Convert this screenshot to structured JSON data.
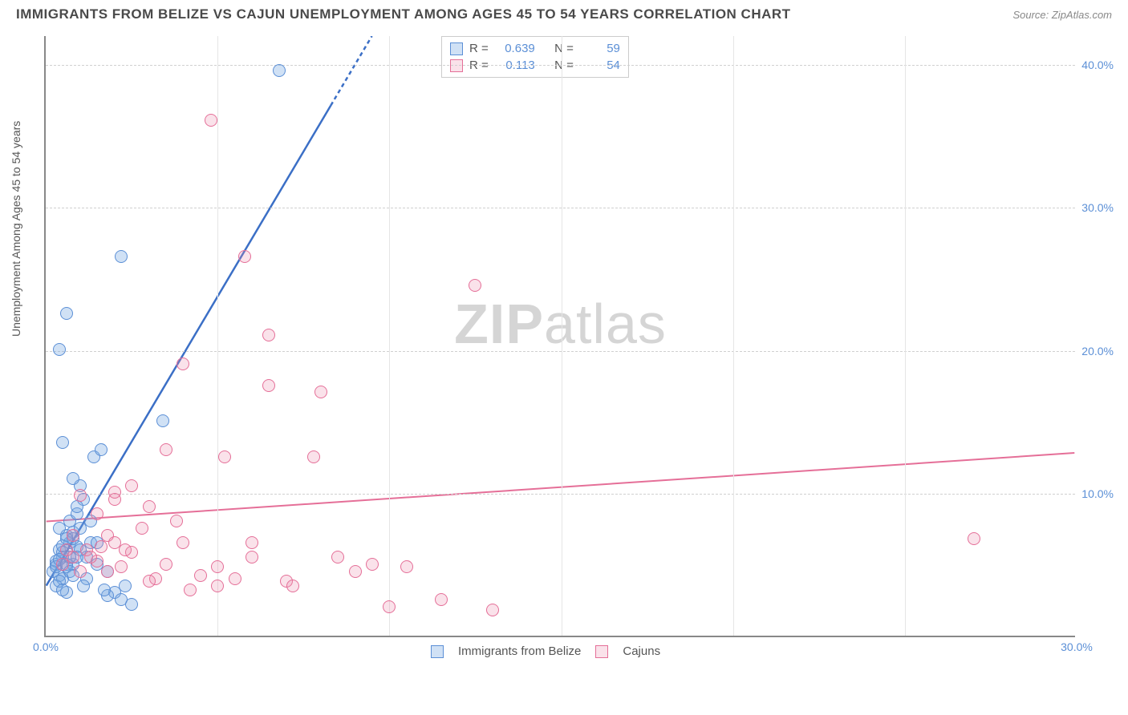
{
  "title": "IMMIGRANTS FROM BELIZE VS CAJUN UNEMPLOYMENT AMONG AGES 45 TO 54 YEARS CORRELATION CHART",
  "source": "Source: ZipAtlas.com",
  "ylabel": "Unemployment Among Ages 45 to 54 years",
  "watermark_bold": "ZIP",
  "watermark_rest": "atlas",
  "chart": {
    "type": "scatter",
    "xlim": [
      0,
      30
    ],
    "ylim": [
      0,
      42
    ],
    "xticks": [
      {
        "v": 0,
        "l": "0.0%"
      },
      {
        "v": 30,
        "l": "30.0%"
      }
    ],
    "yticks": [
      {
        "v": 10,
        "l": "10.0%"
      },
      {
        "v": 20,
        "l": "20.0%"
      },
      {
        "v": 30,
        "l": "30.0%"
      },
      {
        "v": 40,
        "l": "40.0%"
      }
    ],
    "grid_h": [
      10,
      20,
      30,
      40
    ],
    "grid_v": [
      5,
      10,
      15,
      20,
      25
    ],
    "background_color": "#ffffff",
    "grid_color": "#d0d0d0",
    "marker_size": 16,
    "series": [
      {
        "name": "Immigrants from Belize",
        "color_fill": "rgba(120,170,225,0.35)",
        "color_stroke": "#5b8fd6",
        "r_label": "R =",
        "r_value": "0.639",
        "n_label": "N =",
        "n_value": "59",
        "trend": {
          "x1": 0,
          "y1": 3.5,
          "x2": 9.5,
          "y2": 42,
          "color": "#3b6fc6",
          "width": 2.5,
          "dash_after_x": 8.3
        },
        "points": [
          [
            0.2,
            4.5
          ],
          [
            0.3,
            5.0
          ],
          [
            0.4,
            4.2
          ],
          [
            0.5,
            5.5
          ],
          [
            0.4,
            6.0
          ],
          [
            0.3,
            5.2
          ],
          [
            0.6,
            4.8
          ],
          [
            0.5,
            5.8
          ],
          [
            0.7,
            6.5
          ],
          [
            0.8,
            5.0
          ],
          [
            0.6,
            7.0
          ],
          [
            0.9,
            6.2
          ],
          [
            0.4,
            7.5
          ],
          [
            0.5,
            4.0
          ],
          [
            0.7,
            8.0
          ],
          [
            0.8,
            7.2
          ],
          [
            1.0,
            6.0
          ],
          [
            0.3,
            3.5
          ],
          [
            0.6,
            3.0
          ],
          [
            1.2,
            5.5
          ],
          [
            0.9,
            8.5
          ],
          [
            1.1,
            9.5
          ],
          [
            1.0,
            10.5
          ],
          [
            0.8,
            11.0
          ],
          [
            1.5,
            5.0
          ],
          [
            1.3,
            6.5
          ],
          [
            1.8,
            4.5
          ],
          [
            2.0,
            3.0
          ],
          [
            2.2,
            2.5
          ],
          [
            1.8,
            2.8
          ],
          [
            2.5,
            2.2
          ],
          [
            1.4,
            12.5
          ],
          [
            1.6,
            13.0
          ],
          [
            0.5,
            13.5
          ],
          [
            0.4,
            20.0
          ],
          [
            0.6,
            22.5
          ],
          [
            2.2,
            26.5
          ],
          [
            3.4,
            15.0
          ],
          [
            6.8,
            39.5
          ],
          [
            0.3,
            4.8
          ],
          [
            0.4,
            5.3
          ],
          [
            0.5,
            6.3
          ],
          [
            0.6,
            5.0
          ],
          [
            0.7,
            4.5
          ],
          [
            0.8,
            6.8
          ],
          [
            0.9,
            5.5
          ],
          [
            1.0,
            7.5
          ],
          [
            0.4,
            3.8
          ],
          [
            0.5,
            3.2
          ],
          [
            1.2,
            4.0
          ],
          [
            1.5,
            6.5
          ],
          [
            0.8,
            4.2
          ],
          [
            0.6,
            6.8
          ],
          [
            0.9,
            9.0
          ],
          [
            1.3,
            8.0
          ],
          [
            1.1,
            3.5
          ],
          [
            1.7,
            3.2
          ],
          [
            2.3,
            3.5
          ],
          [
            0.7,
            5.5
          ]
        ]
      },
      {
        "name": "Cajuns",
        "color_fill": "rgba(235,140,170,0.25)",
        "color_stroke": "#e56f98",
        "r_label": "R =",
        "r_value": "0.113",
        "n_label": "N =",
        "n_value": "54",
        "trend": {
          "x1": 0,
          "y1": 8.0,
          "x2": 30,
          "y2": 12.8,
          "color": "#e56f98",
          "width": 2
        },
        "points": [
          [
            0.5,
            5.0
          ],
          [
            0.8,
            5.5
          ],
          [
            1.0,
            4.5
          ],
          [
            1.2,
            6.0
          ],
          [
            1.5,
            5.2
          ],
          [
            1.8,
            7.0
          ],
          [
            2.0,
            6.5
          ],
          [
            2.2,
            4.8
          ],
          [
            2.5,
            5.8
          ],
          [
            2.8,
            7.5
          ],
          [
            3.0,
            9.0
          ],
          [
            3.2,
            4.0
          ],
          [
            3.5,
            5.0
          ],
          [
            4.0,
            6.5
          ],
          [
            4.5,
            4.2
          ],
          [
            5.0,
            3.5
          ],
          [
            5.2,
            12.5
          ],
          [
            5.5,
            4.0
          ],
          [
            6.0,
            5.5
          ],
          [
            6.5,
            17.5
          ],
          [
            7.0,
            3.8
          ],
          [
            7.2,
            3.5
          ],
          [
            7.8,
            12.5
          ],
          [
            8.0,
            17.0
          ],
          [
            8.5,
            5.5
          ],
          [
            9.0,
            4.5
          ],
          [
            9.5,
            5.0
          ],
          [
            10.0,
            2.0
          ],
          [
            10.5,
            4.8
          ],
          [
            11.5,
            2.5
          ],
          [
            12.5,
            24.5
          ],
          [
            13.0,
            1.8
          ],
          [
            4.8,
            36.0
          ],
          [
            3.5,
            13.0
          ],
          [
            4.0,
            19.0
          ],
          [
            5.8,
            26.5
          ],
          [
            6.5,
            21.0
          ],
          [
            2.0,
            9.5
          ],
          [
            2.5,
            10.5
          ],
          [
            27.0,
            6.8
          ],
          [
            1.5,
            8.5
          ],
          [
            1.8,
            4.5
          ],
          [
            2.3,
            6.0
          ],
          [
            3.0,
            3.8
          ],
          [
            3.8,
            8.0
          ],
          [
            1.0,
            9.8
          ],
          [
            0.8,
            7.0
          ],
          [
            1.3,
            5.5
          ],
          [
            1.6,
            6.2
          ],
          [
            4.2,
            3.2
          ],
          [
            5.0,
            4.8
          ],
          [
            6.0,
            6.5
          ],
          [
            2.0,
            10.0
          ],
          [
            0.6,
            6.0
          ]
        ]
      }
    ]
  },
  "legend": {
    "series1": "Immigrants from Belize",
    "series2": "Cajuns"
  }
}
